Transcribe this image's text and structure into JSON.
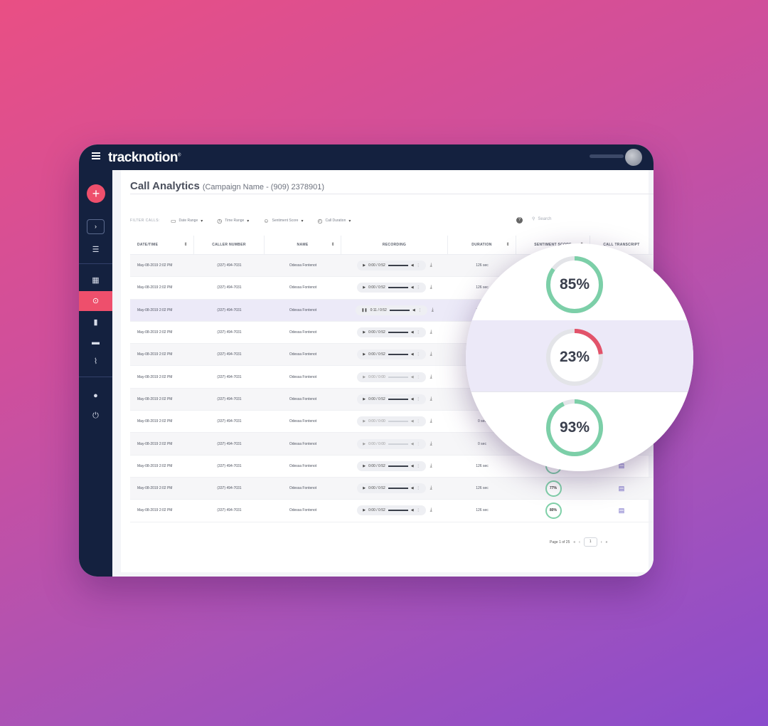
{
  "app": {
    "logo": "tracknotion"
  },
  "sidebar": {
    "add": "+",
    "expand": "›"
  },
  "page": {
    "title": "Call Analytics",
    "subtitle": "(Campaign Name - (909) 2378901)"
  },
  "filters": {
    "label": "FILTER CALLS:",
    "date_range": "Date Range",
    "time_range": "Time Range",
    "sentiment_score": "Sentiment Score",
    "call_duration": "Call Duration",
    "help": "?",
    "search_placeholder": "Search"
  },
  "table": {
    "headers": [
      "DATE/TIME",
      "CALLER NUMBER",
      "NAME",
      "RECORDING",
      "DURATION",
      "SENTIMENT SCORE",
      "CALL TRANSCRIPT"
    ],
    "rows": [
      {
        "date": "May-08-2019  2:02 PM",
        "number": "(337) 494-7031",
        "name": "Odessa Fontenot",
        "rec": "0:00 / 0:52",
        "state": "play",
        "duration": "126 sec"
      },
      {
        "date": "May-08-2019  2:02 PM",
        "number": "(337) 494-7031",
        "name": "Odessa Fontenot",
        "rec": "0:00 / 0:52",
        "state": "play",
        "duration": "126 sec"
      },
      {
        "date": "May-08-2019  2:02 PM",
        "number": "(337) 494-7031",
        "name": "Odessa Fontenot",
        "rec": "0:11 / 0:52",
        "state": "pause",
        "duration": "126 sec"
      },
      {
        "date": "May-08-2019  2:02 PM",
        "number": "(337) 494-7031",
        "name": "Odessa Fontenot",
        "rec": "0:00 / 0:52",
        "state": "play",
        "duration": "126 sec"
      },
      {
        "date": "May-08-2019  2:02 PM",
        "number": "(337) 494-7031",
        "name": "Odessa Fontenot",
        "rec": "0:00 / 0:52",
        "state": "play",
        "duration": "126 sec"
      },
      {
        "date": "May-08-2019  2:02 PM",
        "number": "(337) 494-7031",
        "name": "Odessa Fontenot",
        "rec": "0:00 / 0:00",
        "state": "off",
        "duration": "0 sec"
      },
      {
        "date": "May-08-2019  2:02 PM",
        "number": "(337) 494-7031",
        "name": "Odessa Fontenot",
        "rec": "0:00 / 0:52",
        "state": "play",
        "duration": "126 sec"
      },
      {
        "date": "May-08-2019  2:02 PM",
        "number": "(337) 494-7031",
        "name": "Odessa Fontenot",
        "rec": "0:00 / 0:00",
        "state": "off",
        "duration": "0 sec"
      },
      {
        "date": "May-08-2019  2:02 PM",
        "number": "(337) 494-7031",
        "name": "Odessa Fontenot",
        "rec": "0:00 / 0:00",
        "state": "off",
        "duration": "0 sec"
      },
      {
        "date": "May-08-2019  2:02 PM",
        "number": "(337) 494-7031",
        "name": "Odessa Fontenot",
        "rec": "0:00 / 0:52",
        "state": "play",
        "duration": "126 sec",
        "score": "74%"
      },
      {
        "date": "May-08-2019  2:02 PM",
        "number": "(337) 494-7031",
        "name": "Odessa Fontenot",
        "rec": "0:00 / 0:52",
        "state": "play",
        "duration": "126 sec",
        "score": "77%"
      },
      {
        "date": "May-08-2019  2:02 PM",
        "number": "(337) 494-7031",
        "name": "Odessa Fontenot",
        "rec": "0:00 / 0:52",
        "state": "play",
        "duration": "126 sec",
        "score": "80%"
      }
    ]
  },
  "pager": {
    "text": "Page 1 of 25",
    "page": "1"
  },
  "zoom": {
    "scores": [
      {
        "label": "85%",
        "value": 0.85,
        "color": "#7ccfa8"
      },
      {
        "label": "23%",
        "value": 0.23,
        "color": "#e2536a"
      },
      {
        "label": "93%",
        "value": 0.93,
        "color": "#7ccfa8"
      }
    ]
  }
}
